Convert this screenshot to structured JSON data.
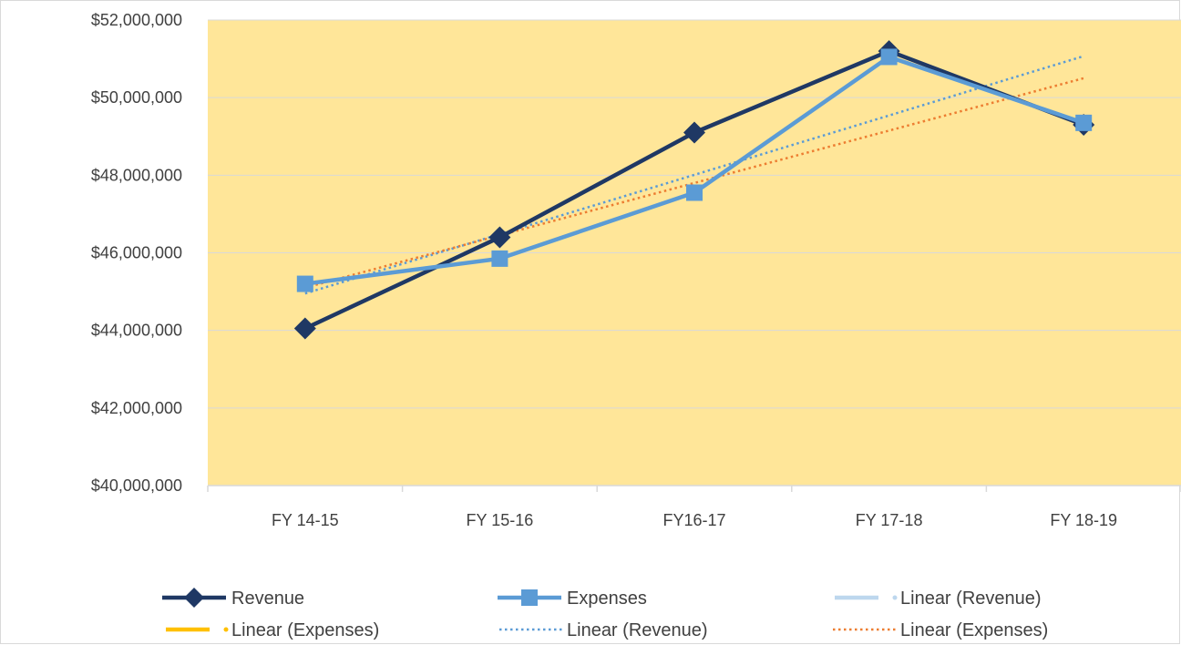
{
  "colors": {
    "plot_bg": "#FFE699",
    "gridline": "#D9D9D9",
    "revenue": "#1F3864",
    "expenses": "#5B9BD5",
    "linear_revenue_dotted": "#5B9BD5",
    "linear_expenses_dotted": "#ED7D31",
    "linear_revenue_legend_dashed": "#BDD7EE",
    "linear_expenses_legend_dashed": "#FFC000"
  },
  "chart_data": {
    "type": "line",
    "categories": [
      "FY 14-15",
      "FY 15-16",
      "FY16-17",
      "FY 17-18",
      "FY 18-19"
    ],
    "series": [
      {
        "name": "Revenue",
        "values": [
          44050000,
          46400000,
          49100000,
          51200000,
          49300000
        ]
      },
      {
        "name": "Expenses",
        "values": [
          45200000,
          45850000,
          47550000,
          51050000,
          49350000
        ]
      }
    ],
    "trendlines": [
      {
        "name": "Linear (Revenue)",
        "of": "Revenue",
        "type": "linear"
      },
      {
        "name": "Linear (Expenses)",
        "of": "Expenses",
        "type": "linear"
      }
    ],
    "ylim": [
      40000000,
      52000000
    ],
    "y_ticks": [
      "$40,000,000",
      "$42,000,000",
      "$44,000,000",
      "$46,000,000",
      "$48,000,000",
      "$50,000,000",
      "$52,000,000"
    ],
    "grid": true,
    "legend_position": "bottom",
    "legend": [
      "Revenue",
      "Expenses",
      "Linear (Revenue)",
      "Linear (Expenses)",
      "Linear (Revenue)",
      "Linear (Expenses)"
    ]
  }
}
